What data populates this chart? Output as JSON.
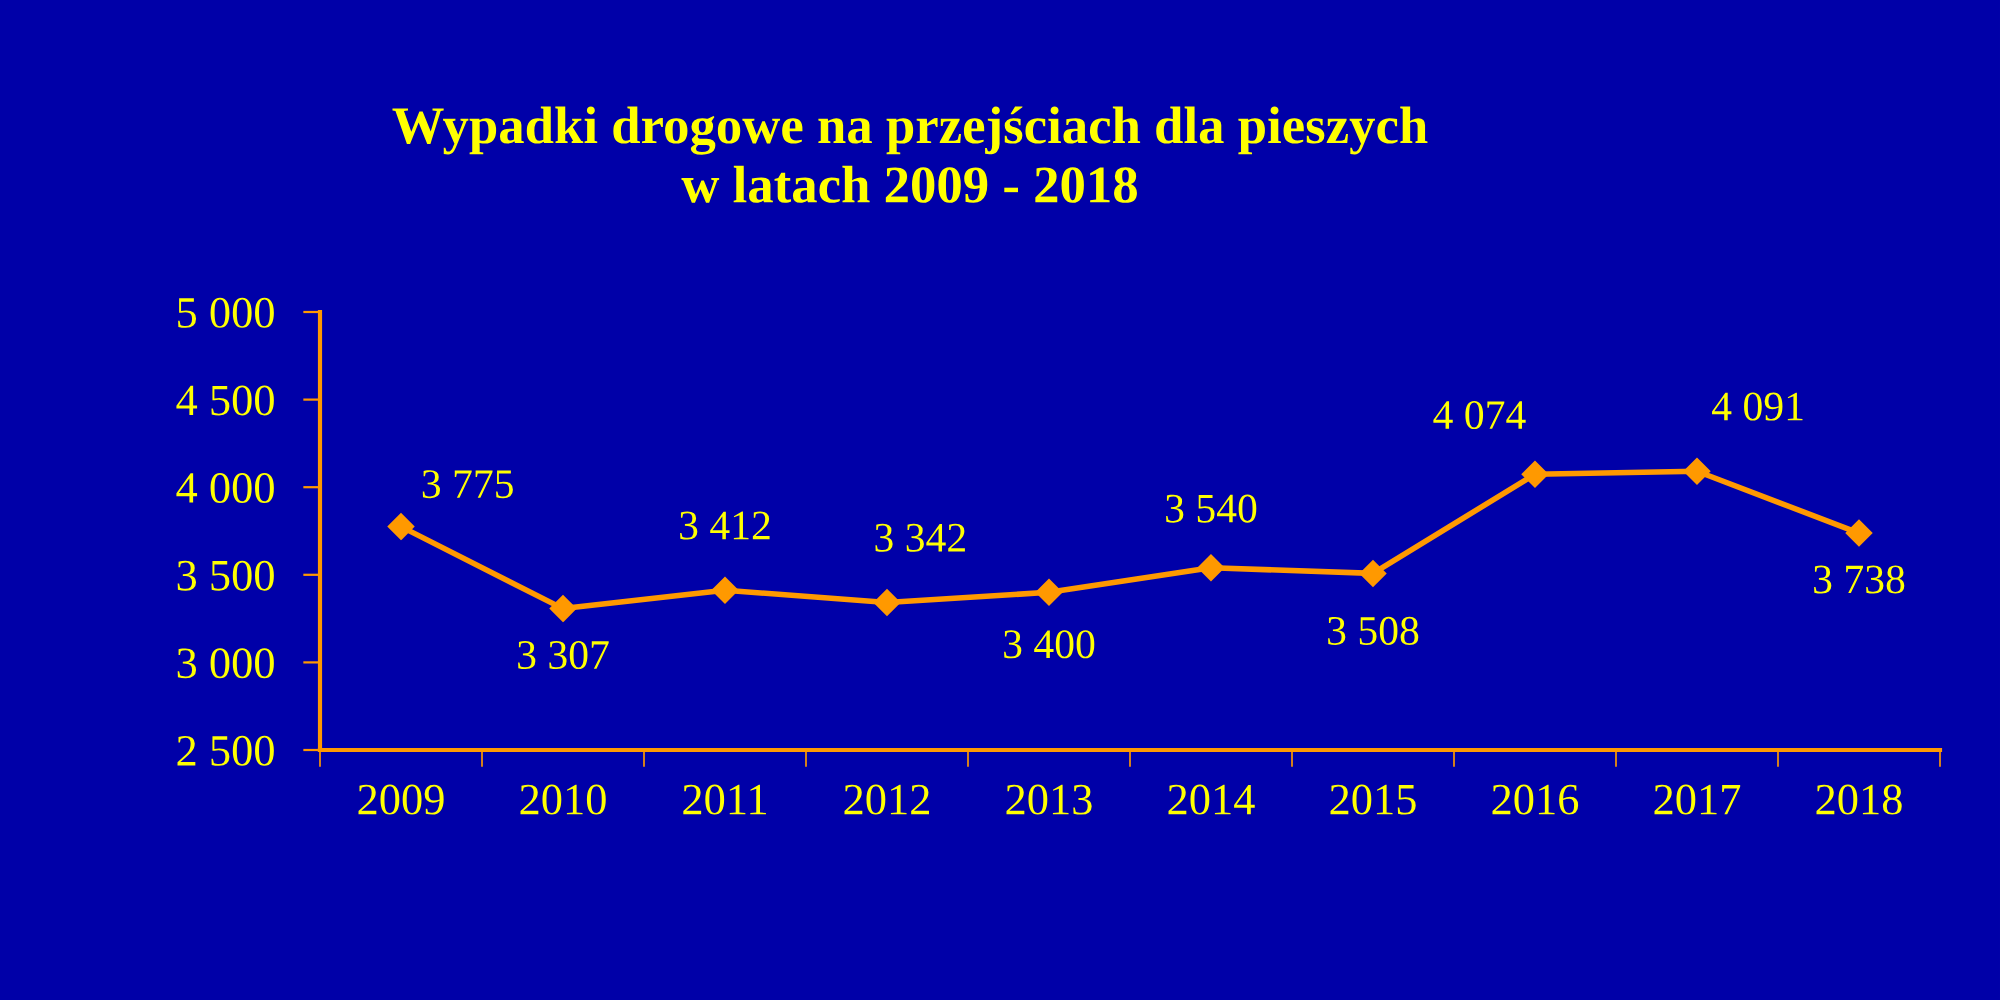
{
  "chart_data": {
    "type": "line",
    "title": "Wypadki drogowe na przejściach dla pieszych\nw latach 2009 - 2018",
    "categories": [
      "2009",
      "2010",
      "2011",
      "2012",
      "2013",
      "2014",
      "2015",
      "2016",
      "2017",
      "2018"
    ],
    "series": [
      {
        "color": "#ff9900",
        "values": [
          3775,
          3307,
          3412,
          3342,
          3400,
          3540,
          3508,
          4074,
          4091,
          3738
        ],
        "value_labels": [
          "3 775",
          "3 307",
          "3 412",
          "3 342",
          "3 400",
          "3 540",
          "3 508",
          "4 074",
          "4 091",
          "3 738"
        ]
      }
    ],
    "ylim": [
      2500,
      5000
    ],
    "yticks": [
      {
        "value": 2500,
        "label": "2 500"
      },
      {
        "value": 3000,
        "label": "3 000"
      },
      {
        "value": 3500,
        "label": "3 500"
      },
      {
        "value": 4000,
        "label": "4 000"
      },
      {
        "value": 4500,
        "label": "4 500"
      },
      {
        "value": 5000,
        "label": "5 000"
      }
    ],
    "marker": "diamond",
    "line_style": "solid",
    "grid": false,
    "legend": false
  }
}
